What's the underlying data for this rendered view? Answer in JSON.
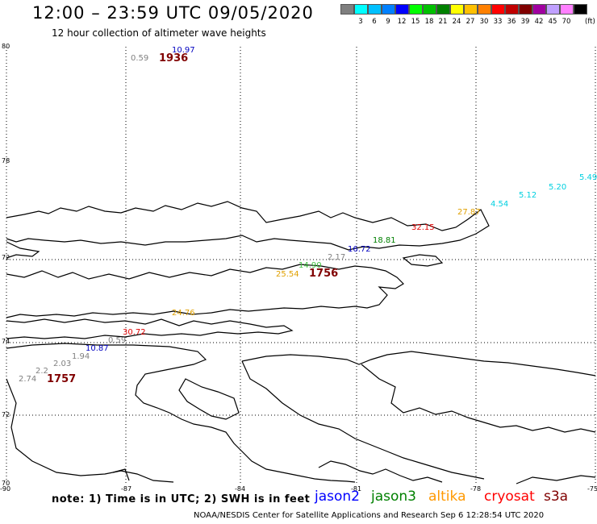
{
  "header": {
    "title": "12:00 – 23:59 UTC 09/05/2020",
    "subtitle": "12 hour collection of altimeter wave heights"
  },
  "scale": {
    "unit": "(ft)",
    "bins": [
      {
        "label": "",
        "color": "#7f7f7f"
      },
      {
        "label": "3",
        "color": "#00ffff"
      },
      {
        "label": "6",
        "color": "#00c0ff"
      },
      {
        "label": "9",
        "color": "#0080ff"
      },
      {
        "label": "12",
        "color": "#0000ff"
      },
      {
        "label": "15",
        "color": "#00ff00"
      },
      {
        "label": "18",
        "color": "#00c000"
      },
      {
        "label": "21",
        "color": "#008000"
      },
      {
        "label": "24",
        "color": "#ffff00"
      },
      {
        "label": "27",
        "color": "#ffc000"
      },
      {
        "label": "30",
        "color": "#ff8000"
      },
      {
        "label": "33",
        "color": "#ff0000"
      },
      {
        "label": "36",
        "color": "#c00000"
      },
      {
        "label": "39",
        "color": "#800000"
      },
      {
        "label": "42",
        "color": "#a000a0"
      },
      {
        "label": "45",
        "color": "#c0a0ff"
      },
      {
        "label": "70",
        "color": "#ff80ff"
      },
      {
        "label": "",
        "color": "#000000"
      }
    ]
  },
  "axes": {
    "lat_labels": [
      "80",
      "78",
      "72",
      "74",
      "72",
      "70"
    ],
    "lon_labels": [
      "-90",
      "-87",
      "-84",
      "-81",
      "-78",
      "-75"
    ]
  },
  "observations": [
    {
      "text": "0.59",
      "color": "#808080"
    },
    {
      "text": "1936",
      "color": "#800000"
    },
    {
      "text": "10.97",
      "color": "#0000c0"
    },
    {
      "text": "5.49",
      "color": "#00d0e0"
    },
    {
      "text": "5.20",
      "color": "#00d0e0"
    },
    {
      "text": "5.12",
      "color": "#00d0e0"
    },
    {
      "text": "4.54",
      "color": "#00d0e0"
    },
    {
      "text": "27.87",
      "color": "#e0a000"
    },
    {
      "text": "32.15",
      "color": "#e00000"
    },
    {
      "text": "18.81",
      "color": "#008000"
    },
    {
      "text": "16.72",
      "color": "#0000c0"
    },
    {
      "text": "2.17",
      "color": "#808080"
    },
    {
      "text": "14.90",
      "color": "#40c040"
    },
    {
      "text": "25.54",
      "color": "#e0a000"
    },
    {
      "text": "1756",
      "color": "#800000"
    },
    {
      "text": "24.76",
      "color": "#e0a000"
    },
    {
      "text": "30.72",
      "color": "#e00000"
    },
    {
      "text": "0.59",
      "color": "#808080"
    },
    {
      "text": "10.87",
      "color": "#0000c0"
    },
    {
      "text": "1.94",
      "color": "#808080"
    },
    {
      "text": "2.03",
      "color": "#808080"
    },
    {
      "text": "2.2",
      "color": "#808080"
    },
    {
      "text": "2.74",
      "color": "#808080"
    },
    {
      "text": "1757",
      "color": "#800000"
    }
  ],
  "footer": {
    "note": "note:  1) Time is in UTC;  2) SWH is in feet",
    "legend": [
      {
        "name": "jason2",
        "color": "#0000ff"
      },
      {
        "name": "jason3",
        "color": "#008000"
      },
      {
        "name": "altika",
        "color": "#ff9900"
      },
      {
        "name": "cryosat",
        "color": "#ff0000"
      },
      {
        "name": "s3a",
        "color": "#800000"
      }
    ],
    "credit": "NOAA/NESDIS Center for Satellite Applications and Research    Sep  6 12:28:54 UTC 2020"
  }
}
